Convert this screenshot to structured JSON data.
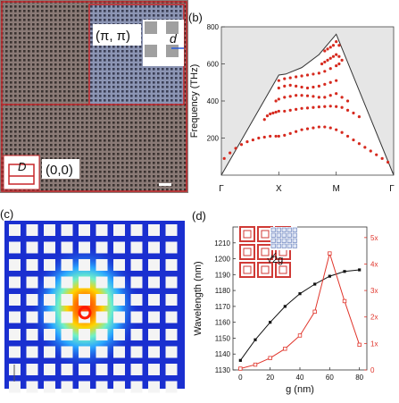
{
  "panel_a": {
    "label_pipi": "(π, π)",
    "label_00": "(0,0)",
    "label_D": "D",
    "label_d": "d"
  },
  "panel_b": {
    "label": "(b)",
    "xtick_labels": [
      "Γ",
      "X",
      "M",
      "Γ"
    ],
    "color_points": "#d62a1f",
    "color_fill": "#e6e6e6"
  },
  "panel_c": {
    "label": "(c)"
  },
  "panel_d": {
    "label": "(d)",
    "inset_label": "√2g",
    "color_left": "#111111",
    "color_right": "#e0352b"
  },
  "chart_data": [
    {
      "type": "scatter",
      "panel": "b",
      "ylabel": "Frequency (THz)",
      "xlabel": "",
      "categories": [
        "Γ",
        "X",
        "M",
        "Γ"
      ],
      "ylim": [
        0,
        800
      ],
      "yticks": [
        200,
        400,
        600,
        800
      ],
      "grid": false,
      "band_edge": {
        "x": [
          0,
          1,
          1.12,
          1.4,
          1.7,
          2,
          3
        ],
        "y": [
          0,
          540,
          545,
          580,
          650,
          760,
          0
        ]
      },
      "series": [
        {
          "x": [
            0.05,
            0.15,
            0.25,
            0.35,
            0.45,
            0.55,
            0.65,
            0.75,
            0.85,
            0.95,
            1.0,
            1.1,
            1.2,
            1.3,
            1.4,
            1.5,
            1.6,
            1.7,
            1.8,
            1.9,
            2.0,
            2.1,
            2.2,
            2.3,
            2.4,
            2.5,
            2.6,
            2.7,
            2.8,
            2.9
          ],
          "values": [
            90,
            120,
            145,
            165,
            180,
            190,
            200,
            205,
            210,
            210,
            210,
            215,
            225,
            235,
            245,
            250,
            255,
            260,
            260,
            255,
            245,
            230,
            210,
            190,
            170,
            150,
            130,
            110,
            90,
            70
          ]
        },
        {
          "x": [
            0.75,
            0.8,
            0.85,
            0.9,
            0.95,
            1.0,
            1.1,
            1.2,
            1.3,
            1.4,
            1.5,
            1.6,
            1.7,
            1.8,
            1.9,
            2.0,
            2.1,
            2.2,
            2.3,
            2.4
          ],
          "values": [
            300,
            320,
            330,
            335,
            340,
            345,
            345,
            350,
            355,
            360,
            362,
            365,
            368,
            370,
            372,
            370,
            365,
            350,
            335,
            315
          ]
        },
        {
          "x": [
            0.95,
            1.0,
            1.1,
            1.2,
            1.3,
            1.4,
            1.5,
            1.6,
            1.7,
            1.8,
            1.9,
            2.0,
            2.1,
            2.2
          ],
          "values": [
            400,
            410,
            420,
            425,
            430,
            430,
            428,
            425,
            420,
            420,
            430,
            440,
            420,
            400
          ]
        },
        {
          "x": [
            1.0,
            1.1,
            1.2,
            1.3,
            1.4,
            1.5,
            1.6,
            1.7,
            1.8,
            1.9,
            2.0
          ],
          "values": [
            470,
            480,
            485,
            480,
            475,
            470,
            475,
            480,
            490,
            500,
            510
          ]
        },
        {
          "x": [
            1.0,
            1.1,
            1.2,
            1.3,
            1.4,
            1.5,
            1.6,
            1.7,
            1.8,
            1.9,
            2.0,
            2.05
          ],
          "values": [
            510,
            520,
            525,
            530,
            535,
            540,
            545,
            550,
            560,
            575,
            590,
            600
          ]
        },
        {
          "x": [
            1.75,
            1.8,
            1.85,
            1.9,
            1.95,
            2.0,
            2.05,
            2.1
          ],
          "values": [
            600,
            610,
            620,
            630,
            640,
            650,
            640,
            620
          ]
        },
        {
          "x": [
            1.8,
            1.85,
            1.9,
            1.95,
            2.0,
            2.05
          ],
          "values": [
            670,
            680,
            690,
            700,
            720,
            700
          ]
        }
      ]
    },
    {
      "type": "line",
      "panel": "d",
      "xlabel": "g (nm)",
      "ylabel": "Wavelength (nm)",
      "xlim": [
        -5,
        85
      ],
      "xticks": [
        0,
        20,
        40,
        60,
        80
      ],
      "ylim": [
        1130,
        1220
      ],
      "yticks": [
        1130,
        1140,
        1150,
        1160,
        1170,
        1180,
        1190,
        1200,
        1210
      ],
      "y2lim": [
        0,
        5.4
      ],
      "y2ticks": [
        0,
        1,
        2,
        3,
        4,
        5
      ],
      "y2ticklabels": [
        "0",
        "1x",
        "2x",
        "3x",
        "4x",
        "5x"
      ],
      "series": [
        {
          "axis": "left",
          "color": "#111111",
          "x": [
            0,
            10,
            20,
            30,
            40,
            50,
            60,
            70,
            80
          ],
          "values": [
            1136,
            1149,
            1160,
            1170,
            1178,
            1184,
            1189,
            1192,
            1193
          ]
        },
        {
          "axis": "right",
          "color": "#e0352b",
          "x": [
            0,
            10,
            20,
            30,
            40,
            50,
            60,
            70,
            80
          ],
          "values": [
            0.05,
            0.2,
            0.45,
            0.8,
            1.3,
            2.2,
            4.4,
            2.6,
            0.95
          ]
        }
      ]
    }
  ]
}
